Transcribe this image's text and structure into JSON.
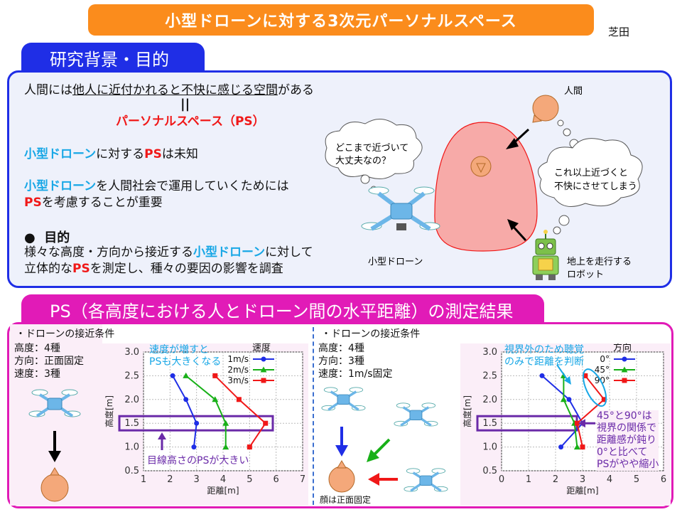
{
  "title": "小型ドローンに対する3次元パーソナルスペース",
  "author": "芝田",
  "section1": {
    "heading": "研究背景・目的",
    "line1_pre": "人間には",
    "line1_u": "他人に近付かれると不快に感じる空間",
    "line1_post": "がある",
    "equals": "||",
    "ps_label": "パーソナルスペース（PS）",
    "line2_drone": "小型ドローン",
    "line2_mid": "に対する",
    "line2_ps": "PS",
    "line2_post": "は未知",
    "line3_drone": "小型ドローン",
    "line3_post": "を人間社会で運用していくためには",
    "line4_ps": "PS",
    "line4_post": "を考慮することが重要",
    "purpose_bullet": "●",
    "purpose_title": "目的",
    "purpose1_pre": "様々な高度・方向から接近する",
    "purpose1_drone": "小型ドローン",
    "purpose1_post": "に対して",
    "purpose2_pre": "立体的な",
    "purpose2_ps": "PS",
    "purpose2_post": "を測定し、種々の要因の影響を調査",
    "illus": {
      "human_label": "人間",
      "cloud_left_1": "どこまで近づいて",
      "cloud_left_2": "大丈夫なの？",
      "cloud_right_1": "これ以上近づくと",
      "cloud_right_2": "不快にさせてしまう",
      "drone_label": "小型ドローン",
      "robot_label_1": "地上を走行する",
      "robot_label_2": "ロボット"
    }
  },
  "section2": {
    "heading": "PS（各高度における人とドローン間の水平距離）の測定結果",
    "left": {
      "cond_title": "・ドローンの接近条件",
      "cond1": "高度：4種",
      "cond2": "方向：正面固定",
      "cond3": "速度：3種",
      "ann_top_1": "速度が増すと",
      "ann_top_2": "PSも大きくなる",
      "ann_bottom": "目線高さのPSが大きい"
    },
    "right": {
      "cond_title": "・ドローンの接近条件",
      "cond1": "高度：4種",
      "cond2": "方向：3種",
      "cond3": "速度：1m/s固定",
      "face_label": "顔は正面固定",
      "ann_top_1": "視界外のため聴覚",
      "ann_top_2": "のみで距離を判断",
      "ann_side": [
        "45°と90°は",
        "視界の関係で",
        "距離感が鈍り",
        "0°と比べて",
        "PSがやや縮小"
      ]
    }
  },
  "colors": {
    "orange": "#fb8c1c",
    "blue": "#1f2ee6",
    "magenta": "#e11bb7",
    "series1": "#1f2ee6",
    "series2": "#18b018",
    "series3": "#f01818",
    "purple": "#6a2aa8"
  },
  "chart_data": [
    {
      "type": "line",
      "legend_title": "速度",
      "xlabel": "距離[m]",
      "ylabel": "高度[m]",
      "xlim": [
        1,
        7
      ],
      "ylim": [
        0.5,
        3.0
      ],
      "xticks": [
        1,
        2,
        3,
        4,
        5,
        6,
        7
      ],
      "yticks": [
        "0.5",
        "1.0",
        "1.5",
        "2.0",
        "2.5",
        "3.0"
      ],
      "grid": true,
      "legend_position": "top-right",
      "series": [
        {
          "name": "1m/s",
          "color": "#1f2ee6",
          "marker": "circle",
          "x": [
            2.1,
            2.6,
            3.0,
            2.9
          ],
          "y": [
            2.5,
            2.0,
            1.5,
            1.0
          ]
        },
        {
          "name": "2m/s",
          "color": "#18b018",
          "marker": "triangle",
          "x": [
            2.6,
            3.7,
            4.1,
            4.1
          ],
          "y": [
            2.5,
            2.0,
            1.5,
            1.0
          ]
        },
        {
          "name": "3m/s",
          "color": "#f01818",
          "marker": "square",
          "x": [
            3.7,
            4.6,
            5.6,
            5.0
          ],
          "y": [
            2.5,
            2.0,
            1.5,
            1.0
          ]
        }
      ]
    },
    {
      "type": "line",
      "legend_title": "方向",
      "xlabel": "距離[m]",
      "ylabel": "高度[m]",
      "xlim": [
        0,
        6
      ],
      "ylim": [
        0.5,
        3.0
      ],
      "xticks": [
        0,
        1,
        2,
        3,
        4,
        5,
        6
      ],
      "yticks": [
        "0.5",
        "1.0",
        "1.5",
        "2.0",
        "2.5",
        "3.0"
      ],
      "grid": true,
      "legend_position": "top-right",
      "series": [
        {
          "name": "0°",
          "color": "#1f2ee6",
          "marker": "circle",
          "x": [
            1.5,
            2.5,
            3.0,
            2.2
          ],
          "y": [
            2.5,
            2.0,
            1.5,
            1.0
          ]
        },
        {
          "name": "45°",
          "color": "#18b018",
          "marker": "triangle",
          "x": [
            2.3,
            2.3,
            2.7,
            2.8
          ],
          "y": [
            2.5,
            2.0,
            1.5,
            1.0
          ]
        },
        {
          "name": "90°",
          "color": "#f01818",
          "marker": "square",
          "x": [
            3.1,
            3.8,
            2.8,
            3.0
          ],
          "y": [
            2.5,
            2.0,
            1.5,
            1.0
          ]
        }
      ]
    }
  ]
}
